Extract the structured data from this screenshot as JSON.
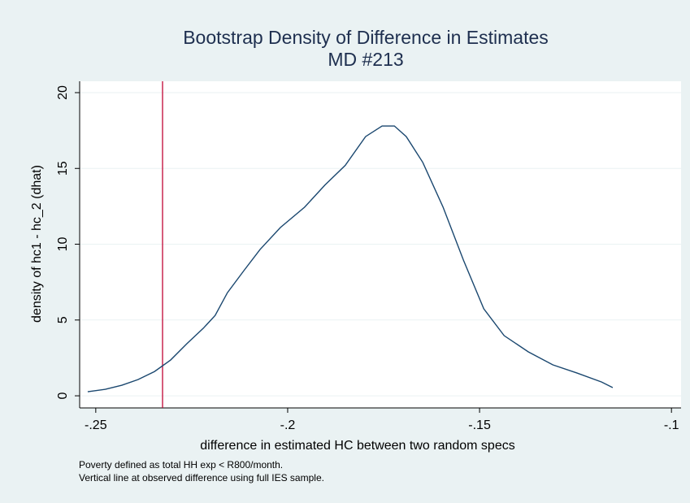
{
  "chart_data": {
    "type": "line",
    "title": [
      "Bootstrap Density of Difference in Estimates",
      "MD #213"
    ],
    "x_label": "difference in estimated HC between two random specs",
    "y_label": "density of hc1 - hc_2 (dhat)",
    "notes": [
      "Poverty defined as total HH exp < R800/month.",
      "Vertical line at observed difference using full IES sample."
    ],
    "x": [
      -0.2521,
      -0.2475,
      -0.2432,
      -0.239,
      -0.2347,
      -0.2305,
      -0.2263,
      -0.222,
      -0.2189,
      -0.2157,
      -0.2114,
      -0.2072,
      -0.2019,
      -0.1956,
      -0.1903,
      -0.185,
      -0.1797,
      -0.1754,
      -0.1722,
      -0.1691,
      -0.1648,
      -0.1595,
      -0.1542,
      -0.1489,
      -0.1436,
      -0.1373,
      -0.1309,
      -0.1246,
      -0.1182,
      -0.1153
    ],
    "series": [
      {
        "color": "#1a476f",
        "values": [
          0.27,
          0.43,
          0.7,
          1.07,
          1.6,
          2.36,
          3.43,
          4.45,
          5.3,
          6.8,
          8.26,
          9.65,
          11.1,
          12.44,
          13.9,
          15.2,
          17.1,
          17.8,
          17.8,
          17.1,
          15.4,
          12.44,
          8.95,
          5.74,
          3.97,
          2.9,
          2.04,
          1.5,
          0.91,
          0.54
        ]
      }
    ],
    "vline": {
      "value": -0.2326,
      "color": "#c10534"
    },
    "xlim": [
      -0.2542,
      -0.0975
    ],
    "xticks": [
      {
        "value": -0.25,
        "label": "-.25"
      },
      {
        "value": -0.2,
        "label": "-.2"
      },
      {
        "value": -0.15,
        "label": "-.15"
      },
      {
        "value": -0.1,
        "label": "-.1"
      }
    ],
    "ylim": [
      -0.8,
      20.75
    ],
    "yticks": [
      0,
      5,
      10,
      15,
      20
    ],
    "grid": true
  }
}
